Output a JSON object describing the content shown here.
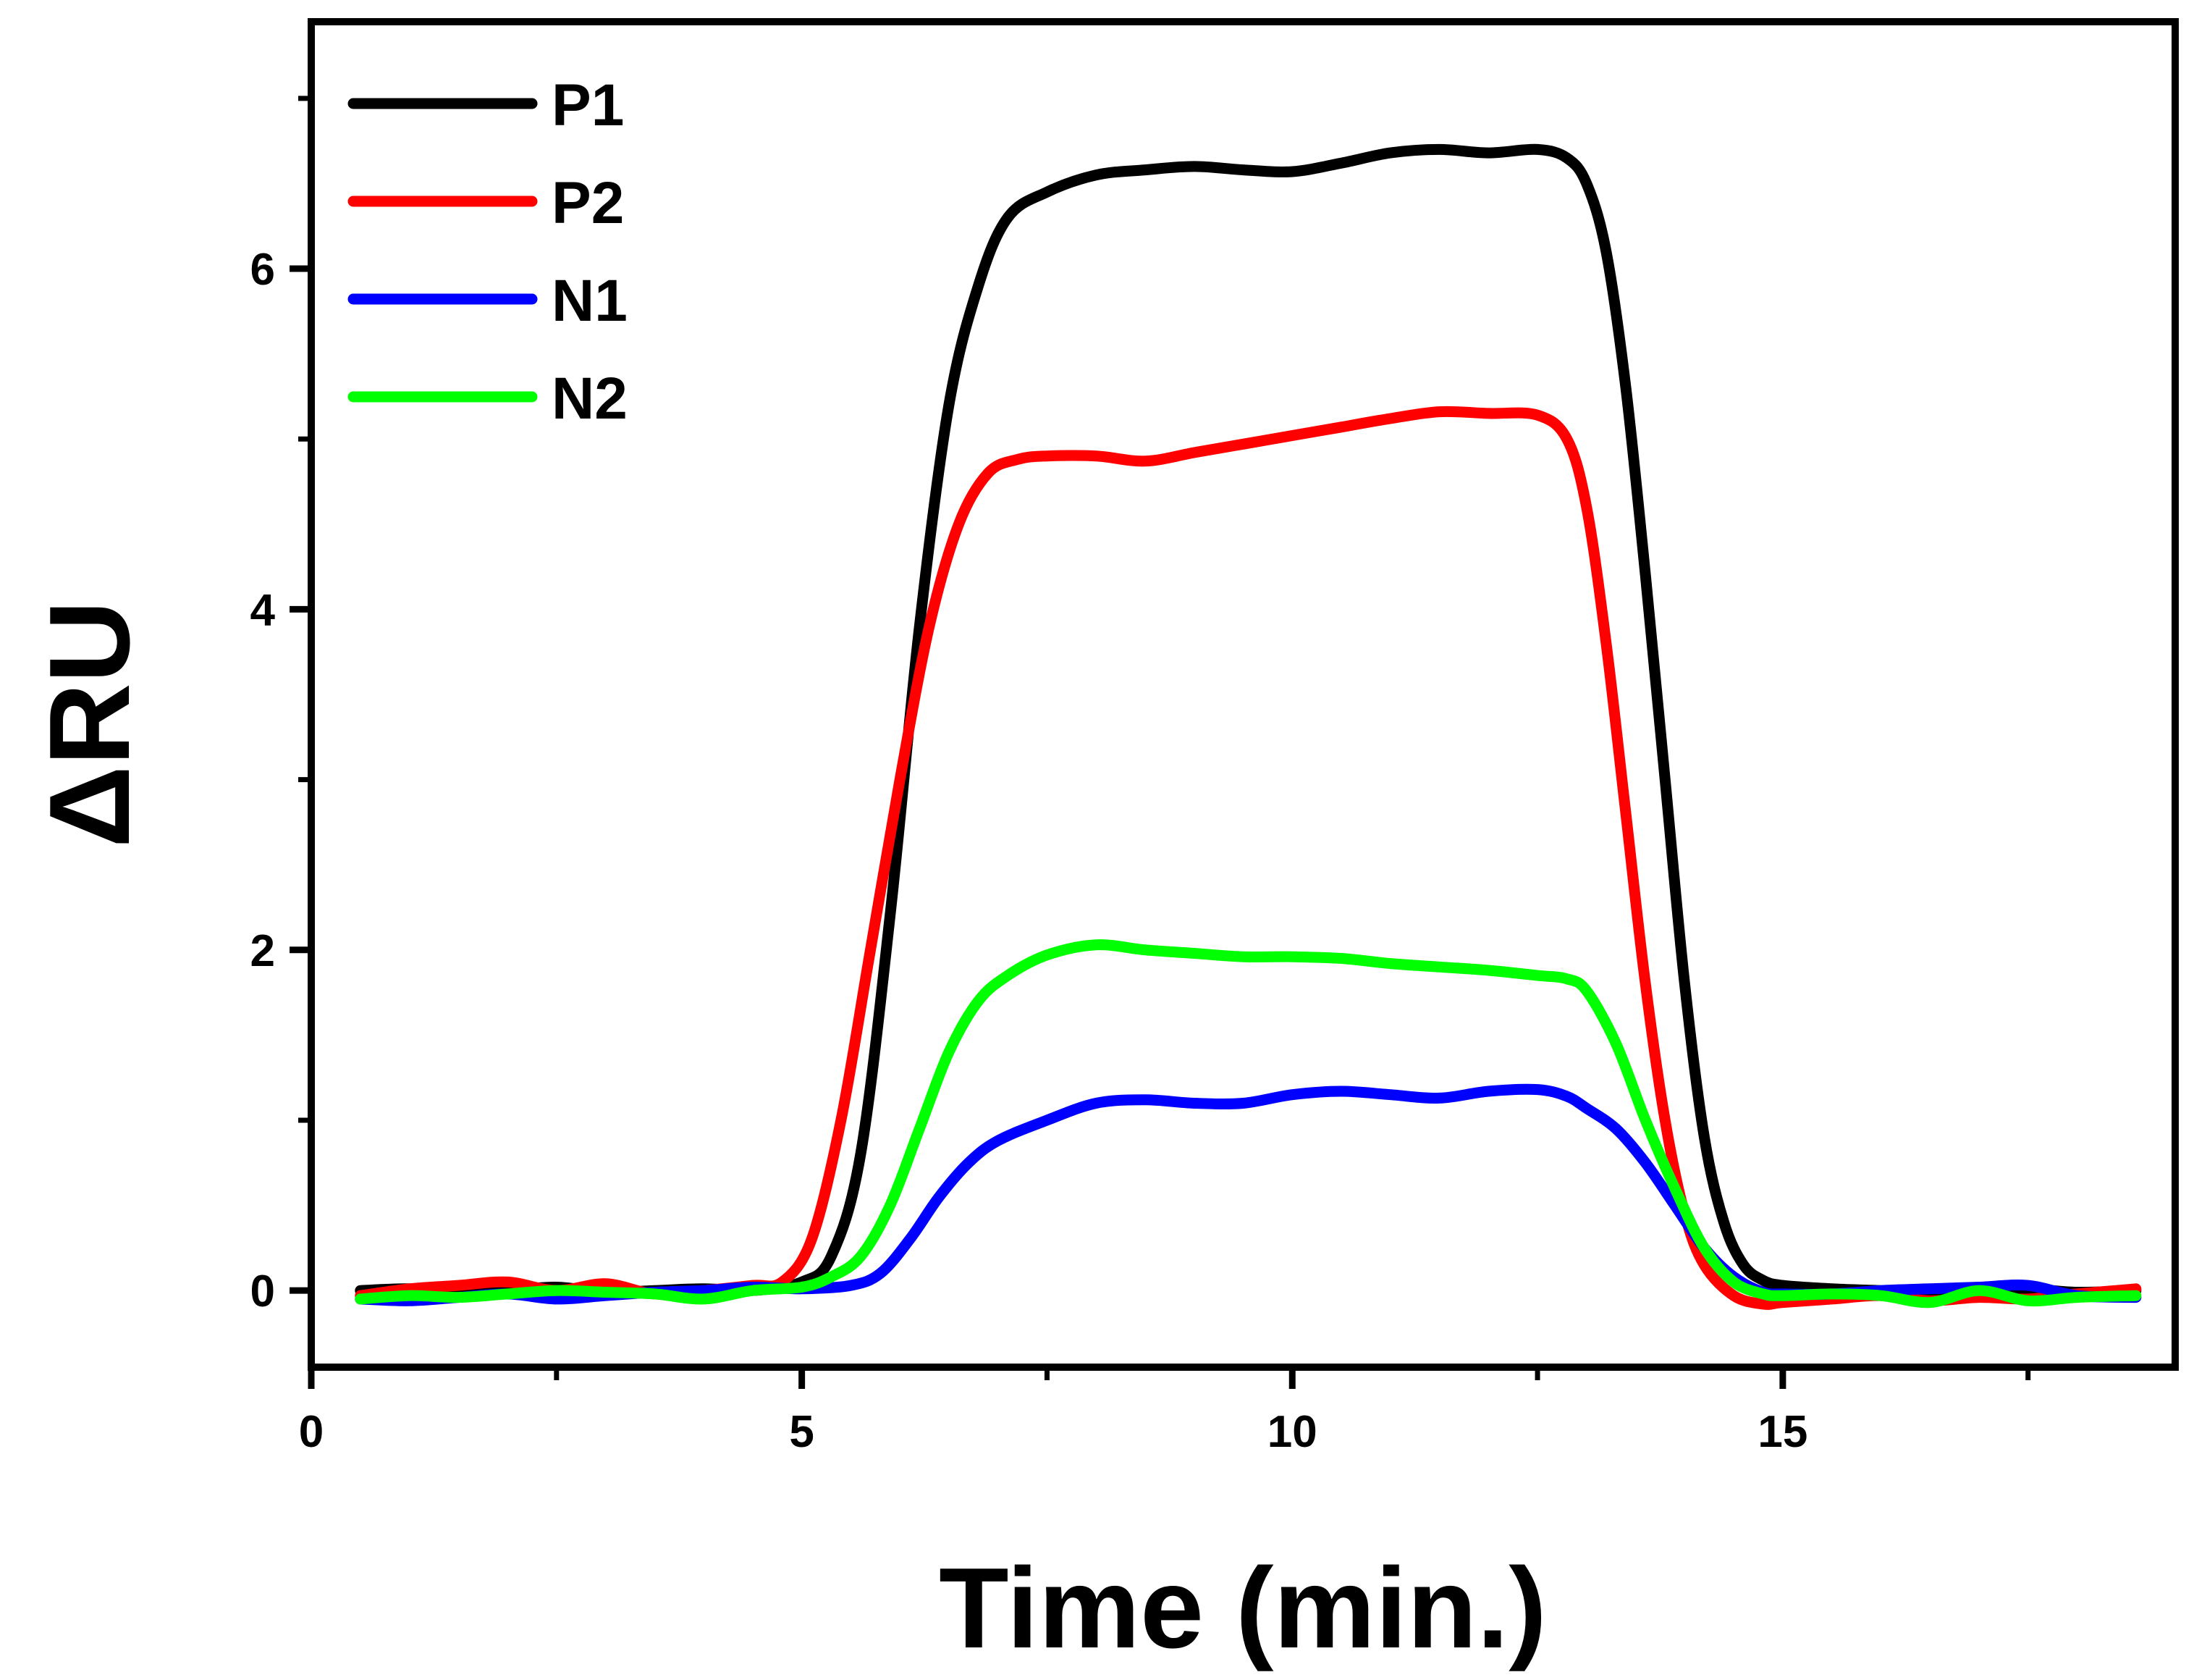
{
  "chart_data": {
    "type": "line",
    "title": "",
    "xlabel": "Time (min.)",
    "ylabel": "ΔRU",
    "xlim": [
      0,
      19
    ],
    "ylim": [
      -0.45,
      7.45
    ],
    "xticks": [
      0,
      5,
      10,
      15
    ],
    "yticks": [
      0,
      2,
      4,
      6
    ],
    "xtick_labels": [
      "0",
      "5",
      "10",
      "15"
    ],
    "ytick_labels": [
      "0",
      "2",
      "4",
      "6"
    ],
    "grid": false,
    "legend_position": "top-left",
    "series": [
      {
        "name": "P1",
        "color": "#000000",
        "x": [
          0.5,
          1.0,
          1.5,
          2.0,
          2.5,
          3.0,
          3.5,
          4.0,
          4.5,
          5.0,
          5.3,
          5.6,
          5.9,
          6.2,
          6.5,
          6.8,
          7.1,
          7.5,
          8.0,
          8.5,
          9.0,
          9.5,
          10.0,
          10.5,
          11.0,
          11.5,
          12.0,
          12.5,
          12.8,
          13.0,
          13.2,
          13.4,
          13.6,
          13.8,
          14.0,
          14.2,
          14.4,
          14.6,
          14.8,
          15.0,
          15.5,
          16.0,
          16.5,
          17.0,
          17.5,
          18.0,
          18.6
        ],
        "y": [
          0.0,
          0.01,
          -0.01,
          0.0,
          0.02,
          -0.01,
          0.0,
          0.01,
          0.0,
          0.05,
          0.2,
          0.8,
          2.2,
          3.9,
          5.2,
          5.9,
          6.3,
          6.45,
          6.55,
          6.58,
          6.6,
          6.58,
          6.57,
          6.62,
          6.68,
          6.7,
          6.68,
          6.7,
          6.65,
          6.5,
          6.1,
          5.3,
          4.2,
          3.0,
          1.8,
          0.9,
          0.4,
          0.15,
          0.06,
          0.03,
          0.01,
          0.0,
          -0.01,
          0.0,
          0.01,
          -0.01,
          0.0
        ]
      },
      {
        "name": "P2",
        "color": "#ff0000",
        "x": [
          0.5,
          1.0,
          1.5,
          2.0,
          2.5,
          3.0,
          3.5,
          4.0,
          4.5,
          4.8,
          5.1,
          5.4,
          5.7,
          6.0,
          6.3,
          6.6,
          6.9,
          7.2,
          7.5,
          8.0,
          8.5,
          9.0,
          9.5,
          10.0,
          10.5,
          11.0,
          11.5,
          12.0,
          12.5,
          12.8,
          13.0,
          13.2,
          13.4,
          13.6,
          13.8,
          14.0,
          14.2,
          14.5,
          14.8,
          15.0,
          15.5,
          16.0,
          16.5,
          17.0,
          17.5,
          18.0,
          18.6
        ],
        "y": [
          -0.03,
          0.01,
          0.03,
          0.05,
          0.0,
          0.04,
          -0.02,
          0.0,
          0.03,
          0.05,
          0.3,
          1.0,
          2.0,
          3.0,
          3.9,
          4.5,
          4.8,
          4.88,
          4.9,
          4.9,
          4.87,
          4.92,
          4.97,
          5.02,
          5.07,
          5.12,
          5.16,
          5.15,
          5.14,
          5.0,
          4.6,
          3.8,
          2.8,
          1.8,
          1.0,
          0.45,
          0.15,
          -0.03,
          -0.08,
          -0.07,
          -0.05,
          -0.03,
          -0.06,
          -0.04,
          -0.05,
          -0.02,
          0.01
        ]
      },
      {
        "name": "N1",
        "color": "#0000ff",
        "x": [
          0.5,
          1.0,
          1.5,
          2.0,
          2.5,
          3.0,
          3.5,
          4.0,
          4.5,
          5.0,
          5.5,
          5.8,
          6.1,
          6.4,
          6.7,
          7.0,
          7.5,
          8.0,
          8.5,
          9.0,
          9.5,
          10.0,
          10.5,
          11.0,
          11.5,
          12.0,
          12.5,
          12.8,
          13.0,
          13.3,
          13.6,
          13.9,
          14.2,
          14.5,
          14.8,
          15.0,
          15.5,
          16.0,
          16.5,
          17.0,
          17.5,
          18.0,
          18.6
        ],
        "y": [
          -0.05,
          -0.06,
          -0.04,
          -0.02,
          -0.05,
          -0.03,
          -0.01,
          0.0,
          0.02,
          0.01,
          0.03,
          0.1,
          0.3,
          0.55,
          0.75,
          0.88,
          1.0,
          1.1,
          1.12,
          1.1,
          1.1,
          1.15,
          1.17,
          1.15,
          1.13,
          1.17,
          1.18,
          1.14,
          1.07,
          0.95,
          0.75,
          0.5,
          0.25,
          0.08,
          -0.01,
          -0.02,
          -0.02,
          0.0,
          0.01,
          0.02,
          0.03,
          -0.03,
          -0.04
        ]
      },
      {
        "name": "N2",
        "color": "#00ff00",
        "x": [
          0.5,
          1.0,
          1.5,
          2.0,
          2.5,
          3.0,
          3.5,
          4.0,
          4.5,
          5.0,
          5.3,
          5.6,
          5.9,
          6.2,
          6.5,
          6.8,
          7.1,
          7.5,
          8.0,
          8.5,
          9.0,
          9.5,
          10.0,
          10.5,
          11.0,
          11.5,
          12.0,
          12.5,
          12.8,
          13.0,
          13.3,
          13.6,
          13.9,
          14.2,
          14.5,
          14.8,
          15.0,
          15.5,
          16.0,
          16.5,
          17.0,
          17.5,
          18.0,
          18.6
        ],
        "y": [
          -0.05,
          -0.03,
          -0.04,
          -0.02,
          0.0,
          -0.01,
          -0.02,
          -0.05,
          0.0,
          0.02,
          0.08,
          0.2,
          0.5,
          0.95,
          1.4,
          1.7,
          1.85,
          1.97,
          2.03,
          2.0,
          1.98,
          1.96,
          1.96,
          1.95,
          1.92,
          1.9,
          1.88,
          1.85,
          1.83,
          1.76,
          1.45,
          1.0,
          0.6,
          0.25,
          0.05,
          -0.02,
          -0.03,
          -0.02,
          -0.03,
          -0.07,
          0.0,
          -0.06,
          -0.04,
          -0.03
        ]
      }
    ]
  }
}
